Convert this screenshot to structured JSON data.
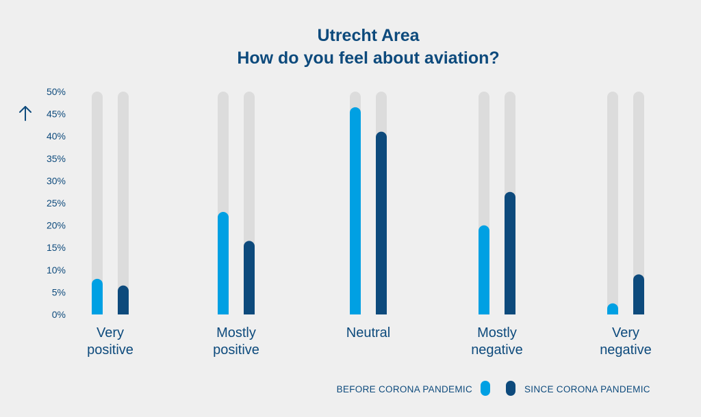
{
  "chart_data": {
    "type": "bar",
    "title_line1": "Utrecht Area",
    "title_line2": "How do you feel about aviation?",
    "xlabel": "",
    "ylabel": "",
    "ylim": [
      0,
      50
    ],
    "yticks": [
      "0%",
      "5%",
      "10%",
      "15%",
      "20%",
      "25%",
      "30%",
      "35%",
      "40%",
      "45%",
      "50%"
    ],
    "categories": [
      [
        "Very",
        "positive"
      ],
      [
        "Mostly",
        "positive"
      ],
      [
        "Neutral"
      ],
      [
        "Mostly",
        "negative"
      ],
      [
        "Very",
        "negative"
      ]
    ],
    "series": [
      {
        "name": "BEFORE CORONA PANDEMIC",
        "color": "#00a0e3",
        "values": [
          8,
          23,
          46.5,
          20,
          2.5
        ]
      },
      {
        "name": "SINCE CORONA PANDEMIC",
        "color": "#0d4a7c",
        "values": [
          6.5,
          16.5,
          41,
          27.5,
          9
        ]
      }
    ],
    "track_color": "#dcdcdc",
    "axis_icon": "arrow-up-icon",
    "legend_position": "bottom-right"
  }
}
